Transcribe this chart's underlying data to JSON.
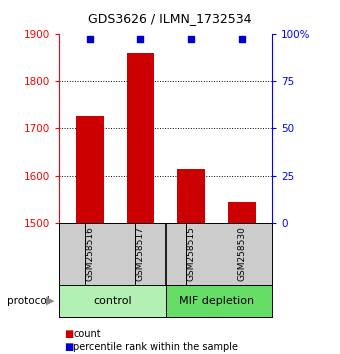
{
  "title": "GDS3626 / ILMN_1732534",
  "samples": [
    "GSM258516",
    "GSM258517",
    "GSM258515",
    "GSM258530"
  ],
  "bar_values": [
    1725,
    1860,
    1615,
    1545
  ],
  "percentile_values": [
    97,
    97,
    97,
    97
  ],
  "bar_color": "#cc0000",
  "percentile_color": "#0000cc",
  "ylim_left": [
    1500,
    1900
  ],
  "ylim_right": [
    0,
    100
  ],
  "yticks_left": [
    1500,
    1600,
    1700,
    1800,
    1900
  ],
  "yticks_right": [
    0,
    25,
    50,
    75,
    100
  ],
  "ytick_labels_right": [
    "0",
    "25",
    "50",
    "75",
    "100%"
  ],
  "control_group_color": "#b3f0b3",
  "mif_group_color": "#66dd66",
  "sample_box_color": "#cccccc",
  "protocol_label": "protocol",
  "legend_count_label": "count",
  "legend_percentile_label": "percentile rank within the sample",
  "background_color": "#ffffff",
  "grid_yticks": [
    1600,
    1700,
    1800
  ]
}
